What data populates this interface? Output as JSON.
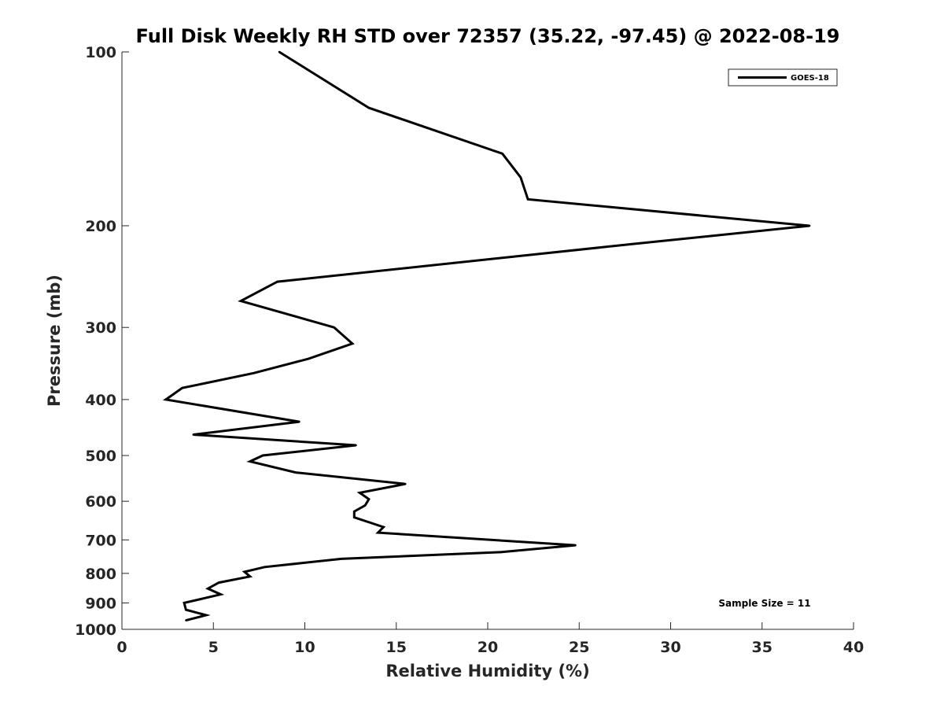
{
  "chart_data": {
    "type": "line",
    "title": "Full Disk Weekly RH STD over 72357 (35.22, -97.45) @ 2022-08-19",
    "xlabel": "Relative Humidity (%)",
    "ylabel": "Pressure (mb)",
    "xlim": [
      0,
      40
    ],
    "ylim": [
      100,
      1000
    ],
    "yscale": "log",
    "reversed_y": true,
    "grid": false,
    "legend_position": "top-right",
    "x_ticks": [
      "0",
      "5",
      "10",
      "15",
      "20",
      "25",
      "30",
      "35",
      "40"
    ],
    "y_ticks": [
      "100",
      "200",
      "300",
      "400",
      "500",
      "600",
      "700",
      "800",
      "900",
      "1000"
    ],
    "annotation": "Sample Size = 11",
    "series": [
      {
        "name": "GOES-18",
        "color": "#000000",
        "points": [
          [
            8.6,
            100
          ],
          [
            13.5,
            125
          ],
          [
            20.8,
            150
          ],
          [
            21.8,
            165
          ],
          [
            22.2,
            180
          ],
          [
            37.6,
            200
          ],
          [
            28.0,
            215
          ],
          [
            8.5,
            250
          ],
          [
            6.5,
            270
          ],
          [
            11.6,
            300
          ],
          [
            12.6,
            320
          ],
          [
            10.2,
            340
          ],
          [
            7.2,
            360
          ],
          [
            3.3,
            382
          ],
          [
            2.4,
            400
          ],
          [
            9.7,
            437
          ],
          [
            3.9,
            460
          ],
          [
            12.8,
            480
          ],
          [
            7.7,
            500
          ],
          [
            7.0,
            512
          ],
          [
            9.5,
            535
          ],
          [
            15.5,
            560
          ],
          [
            13.0,
            580
          ],
          [
            13.5,
            595
          ],
          [
            13.3,
            610
          ],
          [
            12.7,
            625
          ],
          [
            12.7,
            640
          ],
          [
            14.3,
            665
          ],
          [
            14.0,
            680
          ],
          [
            24.8,
            715
          ],
          [
            20.7,
            735
          ],
          [
            12.0,
            755
          ],
          [
            7.8,
            780
          ],
          [
            6.7,
            795
          ],
          [
            7.0,
            810
          ],
          [
            5.3,
            830
          ],
          [
            4.7,
            850
          ],
          [
            5.4,
            870
          ],
          [
            3.4,
            900
          ],
          [
            3.5,
            925
          ],
          [
            4.6,
            945
          ],
          [
            3.5,
            965
          ]
        ]
      }
    ]
  }
}
